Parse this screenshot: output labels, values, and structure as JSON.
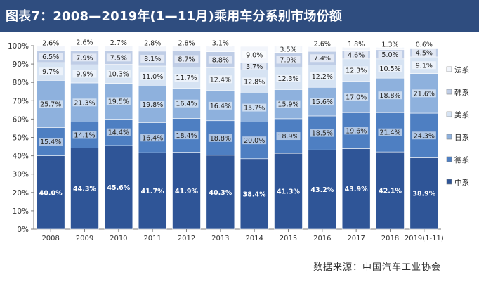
{
  "title": "图表7：2008—2019年(1—11月)乘用车分系别市场份额",
  "source_note": "数据来源：中国汽车工业协会",
  "chart_data": {
    "type": "bar",
    "stacked": true,
    "categories": [
      "2008",
      "2009",
      "2010",
      "2011",
      "2012",
      "2013",
      "2014",
      "2015",
      "2016",
      "2017",
      "2018",
      "2019(1-11)"
    ],
    "y_ticks": [
      "0%",
      "10%",
      "20%",
      "30%",
      "40%",
      "50%",
      "60%",
      "70%",
      "80%",
      "90%",
      "100%"
    ],
    "ylim": [
      0,
      100
    ],
    "legend_position": "right",
    "series": [
      {
        "name": "中系",
        "color": "#2f5597",
        "values": [
          40.0,
          44.3,
          45.6,
          41.7,
          41.9,
          40.3,
          38.4,
          41.3,
          43.2,
          43.9,
          42.1,
          38.9
        ],
        "labels": [
          "40.0%",
          "44.3%",
          "45.6%",
          "41.7%",
          "41.9%",
          "40.3%",
          "38.4%",
          "41.3%",
          "43.2%",
          "43.9%",
          "42.1%",
          "38.9%"
        ]
      },
      {
        "name": "德系",
        "color": "#4e7fc2",
        "values": [
          15.4,
          14.1,
          14.4,
          16.4,
          18.4,
          18.8,
          20.0,
          18.9,
          18.5,
          19.6,
          21.4,
          24.3
        ],
        "labels": [
          "15.4%",
          "14.1%",
          "14.4%",
          "16.4%",
          "18.4%",
          "18.8%",
          "20.0%",
          "18.9%",
          "18.5%",
          "19.6%",
          "21.4%",
          "24.3%"
        ]
      },
      {
        "name": "日系",
        "color": "#8eb1dd",
        "values": [
          25.7,
          21.3,
          19.5,
          19.8,
          16.4,
          16.4,
          15.7,
          15.9,
          15.6,
          17.0,
          18.8,
          21.6
        ],
        "labels": [
          "25.7%",
          "21.3%",
          "19.5%",
          "19.8%",
          "16.4%",
          "16.4%",
          "15.7%",
          "15.9%",
          "15.6%",
          "17.0%",
          "18.8%",
          "21.6%"
        ]
      },
      {
        "name": "美系",
        "color": "#d6e3f3",
        "values": [
          9.7,
          9.9,
          10.3,
          11.0,
          11.7,
          12.4,
          12.8,
          12.3,
          12.2,
          12.3,
          10.5,
          9.1
        ],
        "labels": [
          "9.7%",
          "9.9%",
          "10.3%",
          "11.0%",
          "11.7%",
          "12.4%",
          "12.8%",
          "12.3%",
          "12.2%",
          "12.3%",
          "10.5%",
          "9.1%"
        ]
      },
      {
        "name": "韩系",
        "color": "#bfcde6",
        "values": [
          6.5,
          7.9,
          7.5,
          8.1,
          8.7,
          8.8,
          3.7,
          7.9,
          7.4,
          4.6,
          5.0,
          4.5
        ],
        "labels": [
          "6.5%",
          "7.9%",
          "7.5%",
          "8.1%",
          "8.7%",
          "8.8%",
          "3.7%",
          "7.9%",
          "7.4%",
          "4.6%",
          "5.0%",
          "4.5%"
        ]
      },
      {
        "name": "法系",
        "color": "#f2f5fb",
        "values": [
          2.6,
          2.6,
          2.7,
          2.8,
          2.8,
          3.1,
          9.0,
          3.5,
          2.6,
          1.8,
          1.3,
          0.6
        ],
        "labels": [
          "2.6%",
          "2.6%",
          "2.7%",
          "2.8%",
          "2.8%",
          "3.1%",
          "9.0%",
          "3.5%",
          "2.6%",
          "1.8%",
          "1.3%",
          "0.6%"
        ]
      }
    ]
  }
}
